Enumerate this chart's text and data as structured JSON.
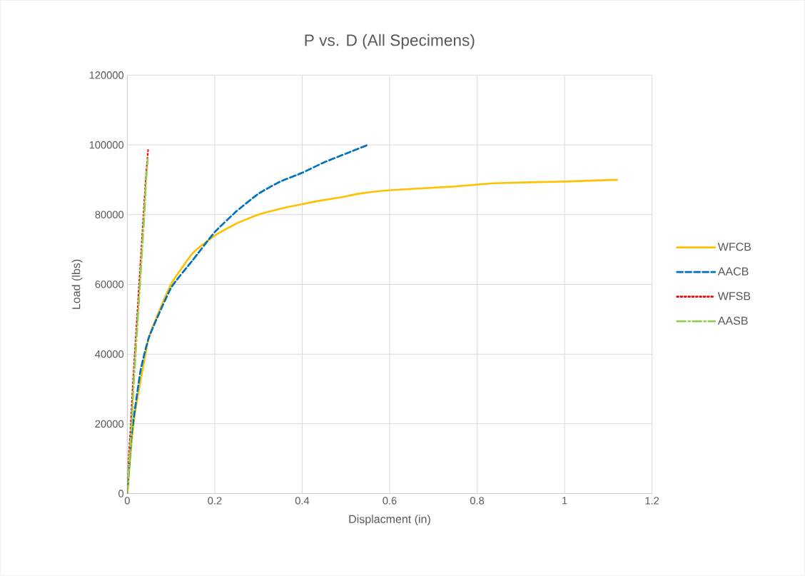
{
  "chart_data": {
    "type": "line",
    "title": "P vs. D (All Specimens)",
    "xlabel": "Displacment (in)",
    "ylabel": "Load (lbs)",
    "xlim": [
      0,
      1.2
    ],
    "xticks": [
      0,
      0.2,
      0.4,
      0.6,
      0.8,
      1,
      1.2
    ],
    "ylim": [
      0,
      120000
    ],
    "yticks": [
      0,
      20000,
      40000,
      60000,
      80000,
      100000,
      120000
    ],
    "grid": true,
    "legend": "right",
    "marker": "none",
    "series": [
      {
        "name": "WFCB",
        "color": "#ffc000",
        "line_style": "solid",
        "x": [
          0,
          0.01,
          0.02,
          0.05,
          0.1,
          0.15,
          0.2,
          0.25,
          0.3,
          0.36,
          0.4,
          0.44,
          0.49,
          0.53,
          0.6,
          0.74,
          0.84,
          1.0,
          1.12
        ],
        "values": [
          0,
          15000,
          25000,
          45000,
          60000,
          69000,
          74000,
          77500,
          80000,
          82000,
          83000,
          84000,
          85000,
          86000,
          87000,
          88000,
          89000,
          89500,
          90000
        ]
      },
      {
        "name": "AACB",
        "color": "#0070c0",
        "line_style": "dashed",
        "x": [
          0,
          0.01,
          0.03,
          0.05,
          0.1,
          0.15,
          0.2,
          0.25,
          0.3,
          0.35,
          0.4,
          0.45,
          0.5,
          0.55
        ],
        "values": [
          0,
          17000,
          35000,
          45000,
          59000,
          67000,
          75000,
          81000,
          86000,
          89500,
          92000,
          95000,
          97500,
          100000
        ]
      },
      {
        "name": "WFSB",
        "color": "#ff0000",
        "line_style": "dotted",
        "x": [
          0,
          0.003,
          0.008,
          0.012,
          0.017,
          0.022,
          0.027,
          0.032,
          0.037,
          0.042,
          0.048
        ],
        "values": [
          0,
          10000,
          20000,
          30000,
          40000,
          50000,
          60000,
          70000,
          80000,
          90000,
          99000
        ]
      },
      {
        "name": "AASB",
        "color": "#92d050",
        "line_style": "dashdot",
        "x": [
          0,
          0.005,
          0.01,
          0.014,
          0.019,
          0.024,
          0.029,
          0.034,
          0.039,
          0.043,
          0.047
        ],
        "values": [
          0,
          10000,
          20000,
          30000,
          40000,
          50000,
          60000,
          70000,
          80000,
          90000,
          96000
        ]
      }
    ]
  }
}
